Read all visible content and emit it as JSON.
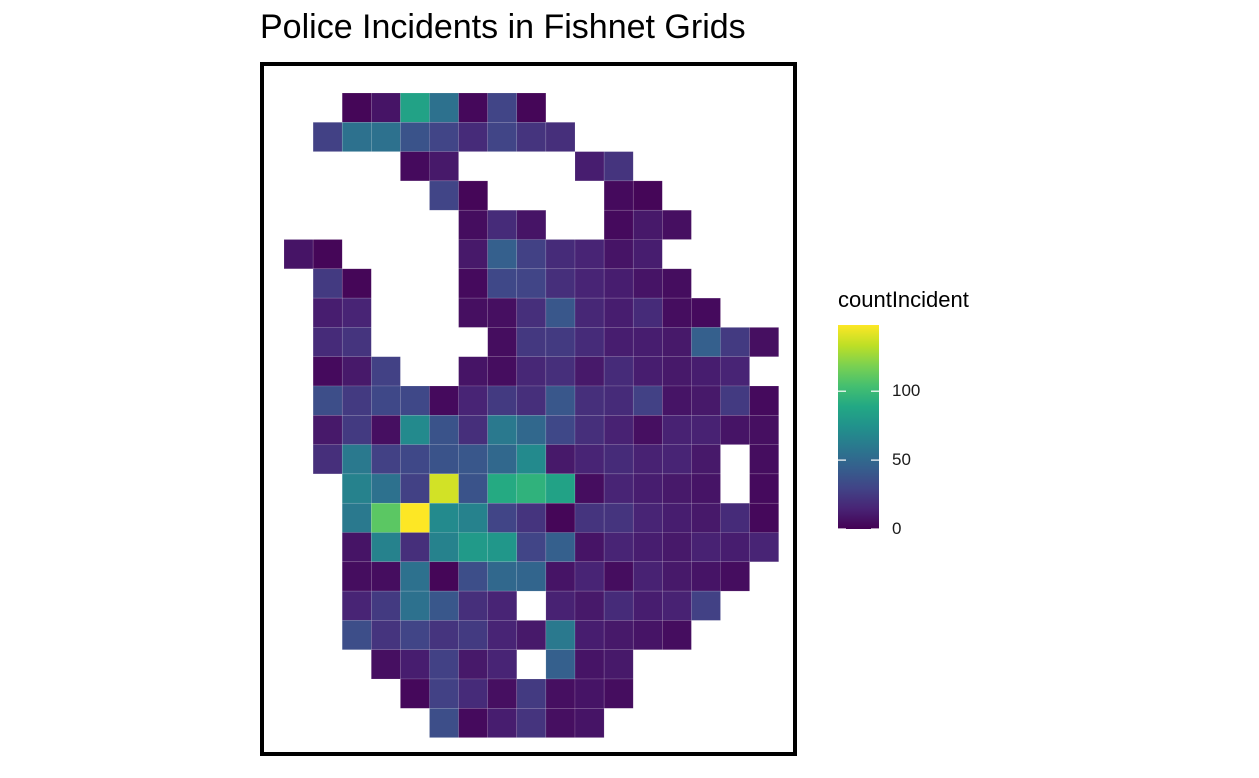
{
  "chart_data": {
    "type": "heatmap",
    "title": "Police Incidents in Fishnet Grids",
    "legend": {
      "title": "countIncident",
      "position": "right",
      "ticks": [
        0,
        50,
        100
      ],
      "tick_labels": [
        "0",
        "50",
        "100"
      ],
      "range": [
        0,
        148
      ],
      "colormap": "viridis"
    },
    "grid": false,
    "panel_border": true,
    "columns": 18,
    "rows": 22,
    "rows_data": [
      {
        "row": 0,
        "start_col": 2,
        "values": [
          2,
          8,
          85,
          55,
          3,
          30,
          2
        ]
      },
      {
        "row": 1,
        "start_col": 1,
        "values": [
          28,
          55,
          55,
          38,
          30,
          18,
          30,
          22,
          20
        ]
      },
      {
        "row": 2,
        "start_col": 4,
        "values": [
          4,
          10,
          null,
          null,
          null,
          null,
          12,
          22
        ]
      },
      {
        "row": 3,
        "start_col": 5,
        "values": [
          30,
          2,
          null,
          null,
          null,
          null,
          4,
          2
        ]
      },
      {
        "row": 4,
        "start_col": 6,
        "values": [
          5,
          18,
          8,
          null,
          null,
          4,
          10,
          6
        ]
      },
      {
        "row": 5,
        "start_col": 0,
        "values": [
          8,
          2,
          null,
          null,
          null,
          null,
          10,
          45,
          28,
          18,
          15,
          8,
          12
        ]
      },
      {
        "row": 6,
        "start_col": 1,
        "values": [
          25,
          2,
          null,
          null,
          null,
          4,
          32,
          30,
          20,
          15,
          12,
          8,
          5
        ]
      },
      {
        "row": 7,
        "start_col": 1,
        "values": [
          12,
          15,
          null,
          null,
          null,
          6,
          6,
          20,
          40,
          16,
          12,
          18,
          5,
          4
        ]
      },
      {
        "row": 8,
        "start_col": 1,
        "values": [
          18,
          22,
          null,
          null,
          null,
          null,
          5,
          24,
          25,
          18,
          12,
          12,
          10,
          45,
          25,
          6
        ]
      },
      {
        "row": 9,
        "start_col": 1,
        "values": [
          4,
          10,
          28,
          null,
          null,
          8,
          5,
          16,
          20,
          10,
          18,
          12,
          10,
          12,
          15
        ]
      },
      {
        "row": 10,
        "start_col": 1,
        "values": [
          35,
          25,
          32,
          32,
          4,
          15,
          25,
          20,
          40,
          20,
          18,
          28,
          8,
          10,
          25,
          4
        ]
      },
      {
        "row": 11,
        "start_col": 1,
        "values": [
          10,
          25,
          6,
          70,
          38,
          20,
          60,
          50,
          32,
          20,
          14,
          6,
          14,
          14,
          8,
          6
        ]
      },
      {
        "row": 12,
        "start_col": 1,
        "values": [
          20,
          60,
          28,
          32,
          38,
          40,
          50,
          70,
          10,
          15,
          18,
          14,
          15,
          10,
          null,
          5
        ]
      },
      {
        "row": 13,
        "start_col": 2,
        "values": [
          65,
          55,
          28,
          138,
          38,
          90,
          95,
          85,
          5,
          15,
          12,
          10,
          8,
          null,
          4
        ]
      },
      {
        "row": 14,
        "start_col": 2,
        "values": [
          60,
          110,
          148,
          70,
          65,
          30,
          22,
          2,
          22,
          22,
          15,
          12,
          10,
          18,
          3
        ]
      },
      {
        "row": 15,
        "start_col": 2,
        "values": [
          8,
          65,
          20,
          65,
          80,
          78,
          30,
          45,
          8,
          15,
          12,
          10,
          14,
          12,
          15
        ]
      },
      {
        "row": 16,
        "start_col": 2,
        "values": [
          5,
          5,
          55,
          2,
          35,
          50,
          48,
          8,
          15,
          5,
          14,
          10,
          8,
          5
        ]
      },
      {
        "row": 17,
        "start_col": 2,
        "values": [
          15,
          25,
          55,
          40,
          20,
          15,
          null,
          14,
          10,
          18,
          12,
          14,
          28
        ]
      },
      {
        "row": 18,
        "start_col": 2,
        "values": [
          35,
          22,
          30,
          22,
          25,
          15,
          10,
          60,
          12,
          10,
          8,
          5
        ]
      },
      {
        "row": 19,
        "start_col": 3,
        "values": [
          6,
          12,
          28,
          10,
          15,
          null,
          45,
          8,
          10
        ]
      },
      {
        "row": 20,
        "start_col": 4,
        "values": [
          3,
          28,
          18,
          6,
          25,
          6,
          8,
          5
        ]
      },
      {
        "row": 21,
        "start_col": 5,
        "values": [
          35,
          4,
          12,
          22,
          6,
          8
        ]
      }
    ]
  }
}
